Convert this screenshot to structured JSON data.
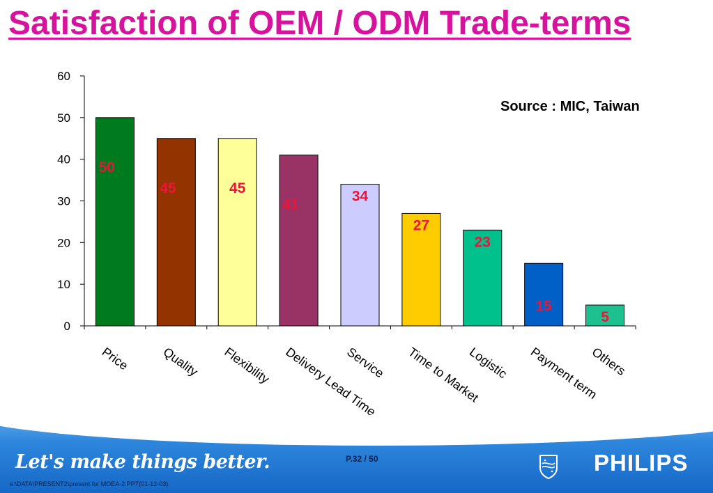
{
  "slide": {
    "title": "Satisfaction of OEM / ODM Trade-terms",
    "source": "Source : MIC, Taiwan",
    "page_number": "P.32 / 50",
    "slogan": "Let's make things better.",
    "brand": "PHILIPS",
    "file_path": "e:\\DATA\\PRESENT2\\present for MOEA-2.PPT(01-12-03)"
  },
  "chart_data": {
    "type": "bar",
    "title": "",
    "xlabel": "",
    "ylabel": "",
    "ylim": [
      0,
      60
    ],
    "yticks": [
      0,
      10,
      20,
      30,
      40,
      50,
      60
    ],
    "grid": false,
    "categories": [
      "Price",
      "Quality",
      "Flexibility",
      "Delivery Lead Time",
      "Service",
      "Time to Market",
      "Logistic",
      "Payment term",
      "Others"
    ],
    "values": [
      50,
      45,
      45,
      41,
      34,
      27,
      23,
      15,
      5
    ],
    "data_labels": [
      "50",
      "45",
      "45",
      "41",
      "34",
      "27",
      "23",
      "15",
      "5"
    ],
    "bar_colors": [
      "#007a1e",
      "#933300",
      "#ffff99",
      "#993366",
      "#ccccff",
      "#ffcc00",
      "#00c08b",
      "#0060c8",
      "#1fc08f"
    ],
    "label_color": "#e8173a"
  }
}
